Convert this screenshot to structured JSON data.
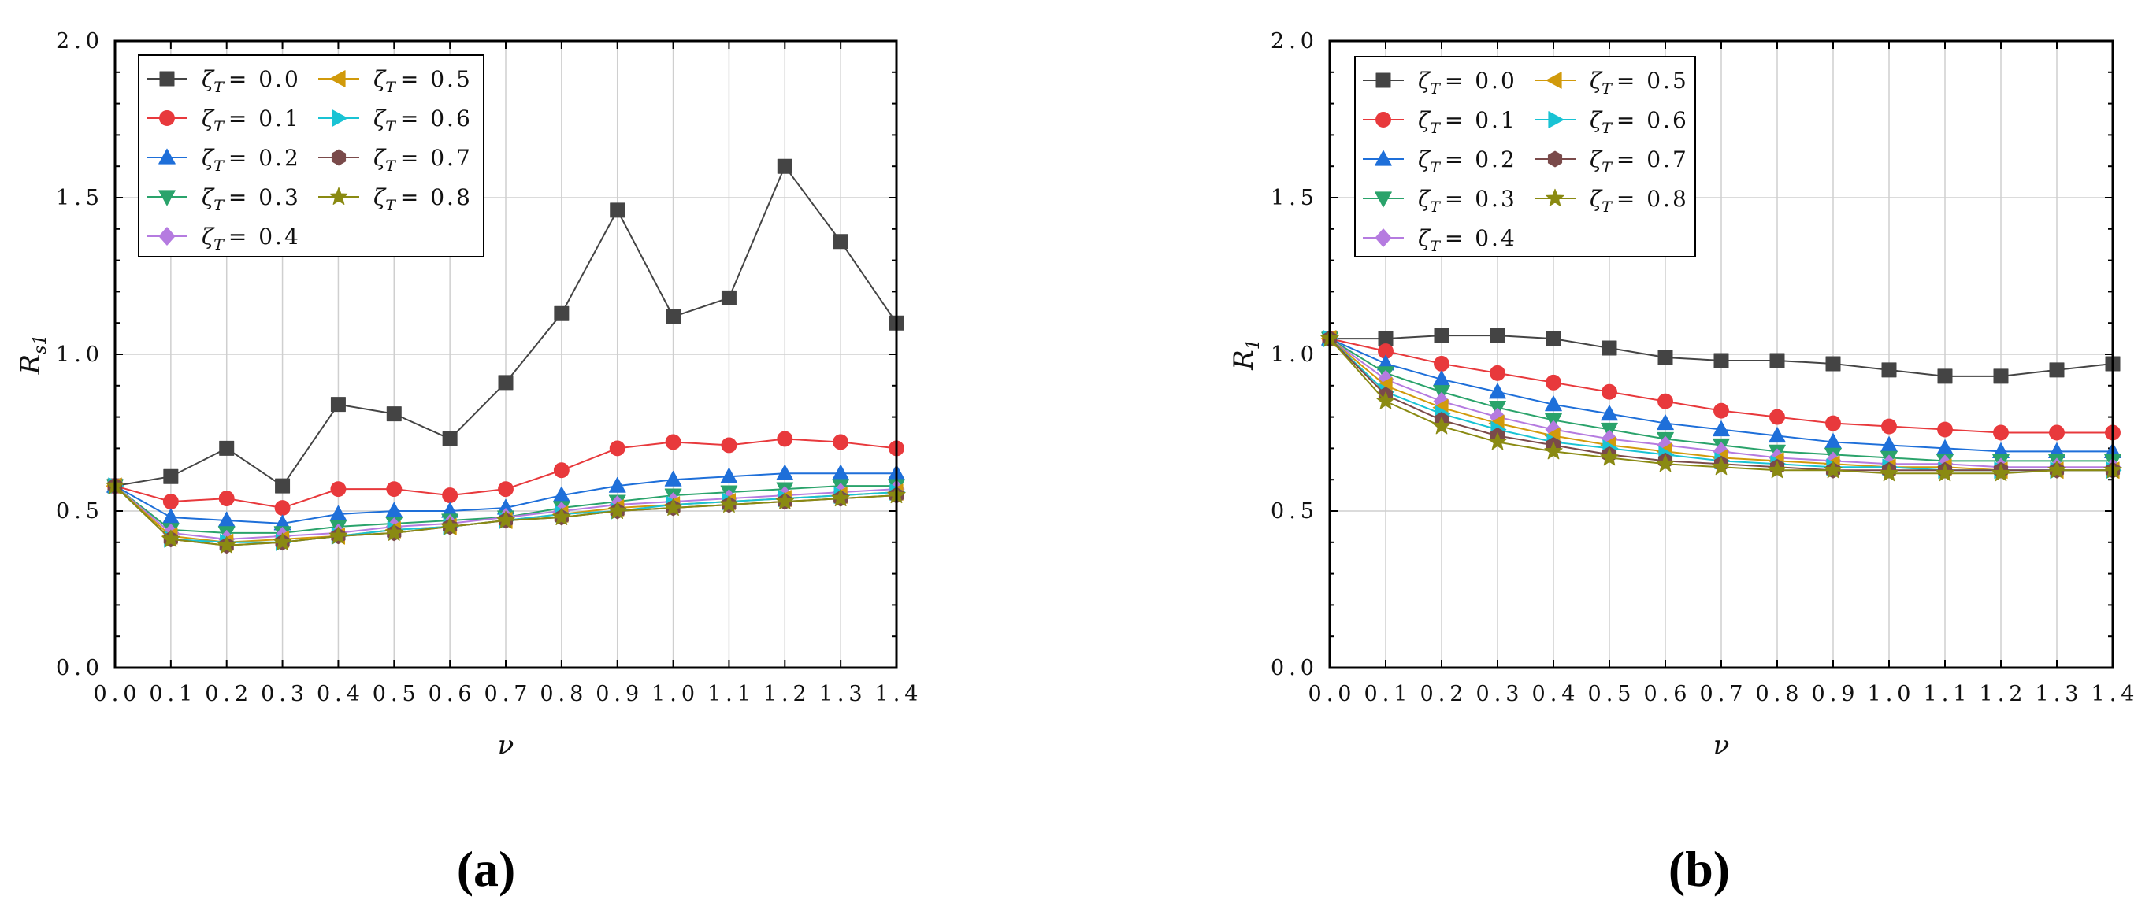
{
  "chart_data": [
    {
      "type": "line",
      "panel_label": "(a)",
      "xlabel": "ν",
      "ylabel": "R",
      "ylabel_sub": "s1",
      "xlim": [
        0.0,
        1.4
      ],
      "ylim": [
        0.0,
        2.0
      ],
      "xticks": [
        "0.0",
        "0.1",
        "0.2",
        "0.3",
        "0.4",
        "0.5",
        "0.6",
        "0.7",
        "0.8",
        "0.9",
        "1.0",
        "1.1",
        "1.2",
        "1.3",
        "1.4"
      ],
      "yticks": [
        "0.0",
        "0.5",
        "1.0",
        "1.5",
        "2.0"
      ],
      "grid": true,
      "legend_position": "top-left",
      "x": [
        0.0,
        0.1,
        0.2,
        0.3,
        0.4,
        0.5,
        0.6,
        0.7,
        0.8,
        0.9,
        1.0,
        1.1,
        1.2,
        1.3,
        1.4
      ],
      "series": [
        {
          "name": "ζT = 0.0",
          "label_sym": "ζ",
          "label_sub": "T",
          "label_val": "= 0.0",
          "marker": "square",
          "color": "#444444",
          "values": [
            0.58,
            0.61,
            0.7,
            0.58,
            0.84,
            0.81,
            0.73,
            0.91,
            1.13,
            1.46,
            1.12,
            1.18,
            1.6,
            1.36,
            1.1
          ]
        },
        {
          "name": "ζT = 0.1",
          "label_sym": "ζ",
          "label_sub": "T",
          "label_val": "= 0.1",
          "marker": "circle",
          "color": "#e8393c",
          "values": [
            0.58,
            0.53,
            0.54,
            0.51,
            0.57,
            0.57,
            0.55,
            0.57,
            0.63,
            0.7,
            0.72,
            0.71,
            0.73,
            0.72,
            0.7
          ]
        },
        {
          "name": "ζT = 0.2",
          "label_sym": "ζ",
          "label_sub": "T",
          "label_val": "= 0.2",
          "marker": "triangle-up",
          "color": "#1e6fd9",
          "values": [
            0.58,
            0.48,
            0.47,
            0.46,
            0.49,
            0.5,
            0.5,
            0.51,
            0.55,
            0.58,
            0.6,
            0.61,
            0.62,
            0.62,
            0.62
          ]
        },
        {
          "name": "ζT = 0.3",
          "label_sym": "ζ",
          "label_sub": "T",
          "label_val": "= 0.3",
          "marker": "triangle-down",
          "color": "#2aa36b",
          "values": [
            0.58,
            0.44,
            0.43,
            0.43,
            0.45,
            0.46,
            0.47,
            0.48,
            0.51,
            0.53,
            0.55,
            0.56,
            0.57,
            0.58,
            0.58
          ]
        },
        {
          "name": "ζT = 0.4",
          "label_sym": "ζ",
          "label_sub": "T",
          "label_val": "= 0.4",
          "marker": "diamond",
          "color": "#b57be0",
          "values": [
            0.58,
            0.43,
            0.41,
            0.42,
            0.43,
            0.45,
            0.46,
            0.48,
            0.5,
            0.52,
            0.53,
            0.54,
            0.55,
            0.56,
            0.57
          ]
        },
        {
          "name": "ζT = 0.5",
          "label_sym": "ζ",
          "label_sub": "T",
          "label_val": "= 0.5",
          "marker": "triangle-left",
          "color": "#d19a0b",
          "values": [
            0.58,
            0.42,
            0.4,
            0.41,
            0.42,
            0.44,
            0.45,
            0.47,
            0.49,
            0.51,
            0.52,
            0.53,
            0.54,
            0.55,
            0.56
          ]
        },
        {
          "name": "ζT = 0.6",
          "label_sym": "ζ",
          "label_sub": "T",
          "label_val": "= 0.6",
          "marker": "triangle-right",
          "color": "#19c3d4",
          "values": [
            0.58,
            0.41,
            0.4,
            0.4,
            0.42,
            0.44,
            0.45,
            0.47,
            0.49,
            0.5,
            0.52,
            0.53,
            0.54,
            0.55,
            0.56
          ]
        },
        {
          "name": "ζT = 0.7",
          "label_sym": "ζ",
          "label_sub": "T",
          "label_val": "= 0.7",
          "marker": "hexagon",
          "color": "#7a4a4a",
          "values": [
            0.58,
            0.41,
            0.39,
            0.4,
            0.42,
            0.43,
            0.45,
            0.47,
            0.48,
            0.5,
            0.51,
            0.52,
            0.53,
            0.54,
            0.55
          ]
        },
        {
          "name": "ζT = 0.8",
          "label_sym": "ζ",
          "label_sub": "T",
          "label_val": "= 0.8",
          "marker": "star",
          "color": "#8a8a12",
          "values": [
            0.58,
            0.41,
            0.39,
            0.4,
            0.42,
            0.43,
            0.45,
            0.47,
            0.48,
            0.5,
            0.51,
            0.52,
            0.53,
            0.54,
            0.55
          ]
        }
      ]
    },
    {
      "type": "line",
      "panel_label": "(b)",
      "xlabel": "ν",
      "ylabel": "R",
      "ylabel_sub": "1",
      "xlim": [
        0.0,
        1.4
      ],
      "ylim": [
        0.0,
        2.0
      ],
      "xticks": [
        "0.0",
        "0.1",
        "0.2",
        "0.3",
        "0.4",
        "0.5",
        "0.6",
        "0.7",
        "0.8",
        "0.9",
        "1.0",
        "1.1",
        "1.2",
        "1.3",
        "1.4"
      ],
      "yticks": [
        "0.0",
        "0.5",
        "1.0",
        "1.5",
        "2.0"
      ],
      "grid": true,
      "legend_position": "top-left",
      "x": [
        0.0,
        0.1,
        0.2,
        0.3,
        0.4,
        0.5,
        0.6,
        0.7,
        0.8,
        0.9,
        1.0,
        1.1,
        1.2,
        1.3,
        1.4
      ],
      "series": [
        {
          "name": "ζT = 0.0",
          "label_sym": "ζ",
          "label_sub": "T",
          "label_val": "= 0.0",
          "marker": "square",
          "color": "#444444",
          "values": [
            1.05,
            1.05,
            1.06,
            1.06,
            1.05,
            1.02,
            0.99,
            0.98,
            0.98,
            0.97,
            0.95,
            0.93,
            0.93,
            0.95,
            0.97
          ]
        },
        {
          "name": "ζT = 0.1",
          "label_sym": "ζ",
          "label_sub": "T",
          "label_val": "= 0.1",
          "marker": "circle",
          "color": "#e8393c",
          "values": [
            1.05,
            1.01,
            0.97,
            0.94,
            0.91,
            0.88,
            0.85,
            0.82,
            0.8,
            0.78,
            0.77,
            0.76,
            0.75,
            0.75,
            0.75
          ]
        },
        {
          "name": "ζT = 0.2",
          "label_sym": "ζ",
          "label_sub": "T",
          "label_val": "= 0.2",
          "marker": "triangle-up",
          "color": "#1e6fd9",
          "values": [
            1.05,
            0.97,
            0.92,
            0.88,
            0.84,
            0.81,
            0.78,
            0.76,
            0.74,
            0.72,
            0.71,
            0.7,
            0.69,
            0.69,
            0.69
          ]
        },
        {
          "name": "ζT = 0.3",
          "label_sym": "ζ",
          "label_sub": "T",
          "label_val": "= 0.3",
          "marker": "triangle-down",
          "color": "#2aa36b",
          "values": [
            1.05,
            0.94,
            0.88,
            0.83,
            0.79,
            0.76,
            0.73,
            0.71,
            0.69,
            0.68,
            0.67,
            0.66,
            0.66,
            0.66,
            0.66
          ]
        },
        {
          "name": "ζT = 0.4",
          "label_sym": "ζ",
          "label_sub": "T",
          "label_val": "= 0.4",
          "marker": "diamond",
          "color": "#b57be0",
          "values": [
            1.05,
            0.92,
            0.85,
            0.8,
            0.76,
            0.73,
            0.71,
            0.69,
            0.67,
            0.66,
            0.65,
            0.65,
            0.64,
            0.64,
            0.64
          ]
        },
        {
          "name": "ζT = 0.5",
          "label_sym": "ζ",
          "label_sub": "T",
          "label_val": "= 0.5",
          "marker": "triangle-left",
          "color": "#d19a0b",
          "values": [
            1.05,
            0.9,
            0.83,
            0.78,
            0.74,
            0.71,
            0.69,
            0.67,
            0.66,
            0.65,
            0.64,
            0.64,
            0.63,
            0.63,
            0.63
          ]
        },
        {
          "name": "ζT = 0.6",
          "label_sym": "ζ",
          "label_sub": "T",
          "label_val": "= 0.6",
          "marker": "triangle-right",
          "color": "#19c3d4",
          "values": [
            1.05,
            0.88,
            0.81,
            0.76,
            0.72,
            0.7,
            0.68,
            0.66,
            0.65,
            0.64,
            0.64,
            0.63,
            0.63,
            0.63,
            0.63
          ]
        },
        {
          "name": "ζT = 0.7",
          "label_sym": "ζ",
          "label_sub": "T",
          "label_val": "= 0.7",
          "marker": "hexagon",
          "color": "#7a4a4a",
          "values": [
            1.05,
            0.87,
            0.79,
            0.74,
            0.71,
            0.68,
            0.66,
            0.65,
            0.64,
            0.63,
            0.63,
            0.63,
            0.63,
            0.63,
            0.63
          ]
        },
        {
          "name": "ζT = 0.8",
          "label_sym": "ζ",
          "label_sub": "T",
          "label_val": "= 0.8",
          "marker": "star",
          "color": "#8a8a12",
          "values": [
            1.05,
            0.85,
            0.77,
            0.72,
            0.69,
            0.67,
            0.65,
            0.64,
            0.63,
            0.63,
            0.62,
            0.62,
            0.62,
            0.63,
            0.63
          ]
        }
      ]
    }
  ]
}
